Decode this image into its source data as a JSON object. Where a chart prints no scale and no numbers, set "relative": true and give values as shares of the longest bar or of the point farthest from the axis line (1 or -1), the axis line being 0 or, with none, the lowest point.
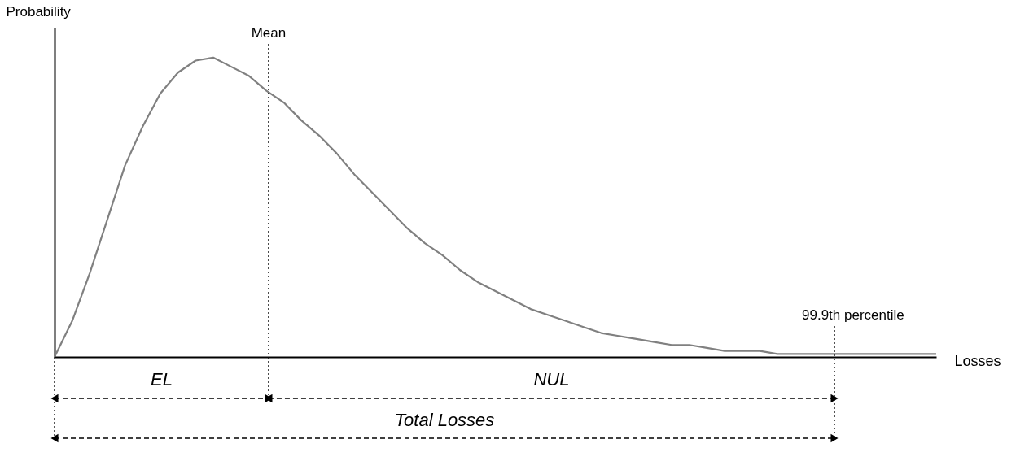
{
  "chart_data": {
    "type": "line",
    "relative": true,
    "xlabel": "Losses",
    "ylabel": "Probability",
    "categories": [
      null,
      null,
      null,
      null,
      null,
      null,
      null,
      null,
      null,
      null,
      null,
      null,
      null,
      null,
      null,
      null,
      null,
      null,
      null,
      null,
      null,
      null,
      null,
      null,
      null,
      null,
      null,
      null,
      null,
      null,
      null,
      null,
      null,
      null,
      null,
      null,
      null,
      null,
      null,
      null,
      null,
      null,
      null,
      null,
      null,
      null,
      null,
      null,
      null,
      null,
      null
    ],
    "series": [
      {
        "color": "#808080",
        "values": [
          0,
          0.12,
          0.28,
          0.46,
          0.64,
          0.77,
          0.88,
          0.95,
          0.99,
          1.0,
          0.97,
          0.94,
          0.89,
          0.85,
          0.79,
          0.74,
          0.68,
          0.61,
          0.55,
          0.49,
          0.43,
          0.38,
          0.34,
          0.29,
          0.25,
          0.22,
          0.19,
          0.16,
          0.14,
          0.12,
          0.1,
          0.08,
          0.07,
          0.06,
          0.05,
          0.04,
          0.04,
          0.03,
          0.02,
          0.02,
          0.02,
          0.01,
          0.01,
          0.01,
          0.01,
          0.01,
          0.01,
          0.01,
          0.01,
          0.01,
          0.01
        ]
      }
    ],
    "annotations": [
      "Mean",
      "99.9th percentile",
      "EL",
      "NUL",
      "Total Losses"
    ],
    "grid": false,
    "marker": "none",
    "line_style": "solid"
  }
}
